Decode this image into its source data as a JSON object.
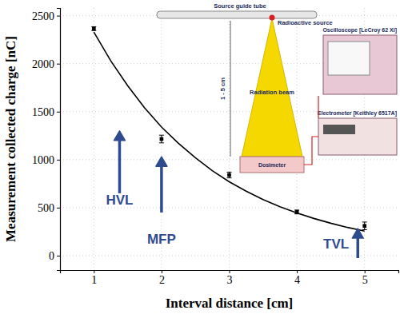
{
  "chart_data": {
    "type": "scatter",
    "x_label": "Interval distance [cm]",
    "y_label": "Measurement collected charge [nC]",
    "xlim": [
      0.5,
      5.5
    ],
    "xticks": [
      1,
      2,
      3,
      4,
      5
    ],
    "ylim": [
      -150,
      2580
    ],
    "yticks": [
      0,
      500,
      1000,
      1500,
      2000,
      2500
    ],
    "grid": true,
    "series": [
      {
        "type": "scatter",
        "x": [
          1,
          2,
          3,
          4,
          5
        ],
        "values": [
          2365,
          1215,
          840,
          455,
          310
        ],
        "error": [
          20,
          40,
          30,
          20,
          40
        ],
        "color": "#000000",
        "marker": "square"
      },
      {
        "type": "line",
        "x": [
          1,
          1.25,
          1.5,
          1.75,
          2,
          2.25,
          2.5,
          2.75,
          3,
          3.25,
          3.5,
          3.75,
          4,
          4.25,
          4.5,
          4.75,
          5
        ],
        "values": [
          2330,
          2030,
          1770,
          1540,
          1340,
          1170,
          1020,
          885,
          770,
          672,
          585,
          510,
          445,
          388,
          338,
          294,
          256
        ],
        "color": "#000000",
        "line_style": "solid"
      }
    ],
    "annotations": [
      {
        "text": "HVL",
        "x": 1.38,
        "y": 570,
        "arrow_x": 1.38,
        "arrow_y0": 650,
        "arrow_y1": 1300,
        "color": "#2f4b8f"
      },
      {
        "text": "MFP",
        "x": 2,
        "y": 158,
        "arrow_x": 2,
        "arrow_y0": 450,
        "arrow_y1": 1030,
        "color": "#2f4b8f"
      },
      {
        "text": "TVL",
        "x": 4.58,
        "y": 116,
        "arrow_x": 4.9,
        "arrow_y0": -25,
        "arrow_y1": 282,
        "color": "#2f4b8f"
      }
    ],
    "inset": {
      "source_guide_tube": "Source guide tube",
      "radioactive_source": "Radioactive source",
      "radiation_beam": "Radiation beam",
      "distance": "1 - 5 cm",
      "dosimeter": "Dosimeter",
      "oscilloscope": "Oscilloscope [LeCroy 62 Xi]",
      "electrometer": "Electrometer [Keithley 6517A]"
    }
  }
}
